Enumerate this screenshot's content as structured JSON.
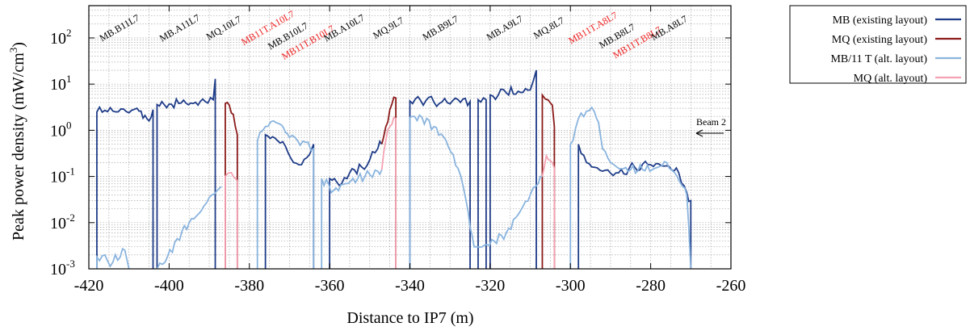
{
  "chart_data": {
    "type": "line",
    "ylabel": "Peak power density (mW/cm",
    "ylabel_sup": "3",
    "ylabel_end": ")",
    "xlabel": "Distance to IP7 (m)",
    "xlim": [
      -420,
      -260
    ],
    "ylim": [
      0.001,
      500
    ],
    "yscale": "log",
    "grid": true,
    "legend_position": "right, outside plot",
    "x_ticks": [
      {
        "v": -420,
        "label": "-420"
      },
      {
        "v": -400,
        "label": "-400"
      },
      {
        "v": -380,
        "label": "-380"
      },
      {
        "v": -360,
        "label": "-360"
      },
      {
        "v": -340,
        "label": "-340"
      },
      {
        "v": -320,
        "label": "-320"
      },
      {
        "v": -300,
        "label": "-300"
      },
      {
        "v": -280,
        "label": "-280"
      },
      {
        "v": -260,
        "label": "-260"
      }
    ],
    "y_ticks": [
      {
        "v": 0.001,
        "base": "10",
        "exp": "-3"
      },
      {
        "v": 0.01,
        "base": "10",
        "exp": "-2"
      },
      {
        "v": 0.1,
        "base": "10",
        "exp": "-1"
      },
      {
        "v": 1,
        "base": "10",
        "exp": "0"
      },
      {
        "v": 10,
        "base": "10",
        "exp": "1"
      },
      {
        "v": 100,
        "base": "10",
        "exp": "2"
      }
    ],
    "magnet_labels": [
      {
        "text": "MB.B11L7",
        "x": -412,
        "y": 38,
        "color": "#000000"
      },
      {
        "text": "MB.A11L7",
        "x": -397,
        "y": 38,
        "color": "#000000"
      },
      {
        "text": "MQ.10L7",
        "x": -386,
        "y": 38,
        "color": "#000000"
      },
      {
        "text": "MB11T.A10L7",
        "x": -375,
        "y": 38,
        "color": "#ee2222"
      },
      {
        "text": "MB.B10L7",
        "x": -370,
        "y": 48,
        "color": "#000000"
      },
      {
        "text": "MB11T.B10L7",
        "x": -365,
        "y": 56,
        "color": "#ee2222"
      },
      {
        "text": "MB.A10L7",
        "x": -356,
        "y": 38,
        "color": "#000000"
      },
      {
        "text": "MQ.9L7",
        "x": -345,
        "y": 38,
        "color": "#000000"
      },
      {
        "text": "MB.B9L7",
        "x": -332,
        "y": 38,
        "color": "#000000"
      },
      {
        "text": "MB.A9L7",
        "x": -316,
        "y": 38,
        "color": "#000000"
      },
      {
        "text": "MQ.8L7",
        "x": -305,
        "y": 38,
        "color": "#000000"
      },
      {
        "text": "MB11T.A8L7",
        "x": -294,
        "y": 38,
        "color": "#ee2222"
      },
      {
        "text": "MB.B8L7",
        "x": -288,
        "y": 48,
        "color": "#000000"
      },
      {
        "text": "MB11T.B8L7",
        "x": -283,
        "y": 56,
        "color": "#ee2222"
      },
      {
        "text": "MB.A8L7",
        "x": -275,
        "y": 38,
        "color": "#000000"
      }
    ],
    "annotation": {
      "text": "Beam 2"
    },
    "series": [
      {
        "name": "MB (existing layout)",
        "color": "#1f3c88",
        "segments": [
          [
            [
              -418,
              0.001
            ],
            [
              -418,
              2.5
            ],
            [
              -416,
              2.7
            ],
            [
              -414,
              2.6
            ],
            [
              -412,
              2.9
            ],
            [
              -410,
              2.4
            ],
            [
              -408,
              3.0
            ],
            [
              -407,
              2.6
            ],
            [
              -406,
              2.1
            ],
            [
              -405,
              1.6
            ],
            [
              -404.5,
              1.9
            ],
            [
              -404,
              2.8
            ],
            [
              -404,
              0.001
            ]
          ],
          [
            [
              -403,
              0.001
            ],
            [
              -403,
              3.6
            ],
            [
              -400,
              3.7
            ],
            [
              -397,
              3.9
            ],
            [
              -394,
              3.8
            ],
            [
              -391,
              4.2
            ],
            [
              -389,
              4.6
            ],
            [
              -388.5,
              13
            ],
            [
              -388.5,
              0.001
            ]
          ],
          [
            [
              -376,
              0.001
            ],
            [
              -376,
              0.8
            ],
            [
              -373,
              0.6
            ],
            [
              -371,
              0.45
            ],
            [
              -369,
              0.2
            ],
            [
              -367,
              0.18
            ],
            [
              -365,
              0.3
            ],
            [
              -364,
              0.5
            ],
            [
              -364,
              0.001
            ]
          ],
          [
            [
              -360,
              0.001
            ],
            [
              -360,
              0.09
            ],
            [
              -357,
              0.07
            ],
            [
              -355,
              0.12
            ],
            [
              -352,
              0.16
            ],
            [
              -350,
              0.23
            ],
            [
              -348,
              0.4
            ],
            [
              -347,
              0.5
            ]
          ],
          [
            [
              -340,
              0.001
            ],
            [
              -340,
              4.3
            ],
            [
              -336,
              4.4
            ],
            [
              -332,
              4.1
            ],
            [
              -328,
              4.6
            ],
            [
              -325,
              4.2
            ],
            [
              -325,
              0.001
            ]
          ],
          [
            [
              -323,
              0.001
            ],
            [
              -323,
              4.6
            ],
            [
              -321,
              4.6
            ],
            [
              -321,
              0.001
            ]
          ],
          [
            [
              -320,
              0.001
            ],
            [
              -320,
              5.8
            ],
            [
              -316,
              6.5
            ],
            [
              -313,
              7.0
            ],
            [
              -310,
              7.5
            ],
            [
              -308.5,
              20
            ],
            [
              -308.5,
              0.001
            ]
          ],
          [
            [
              -298,
              0.001
            ],
            [
              -298,
              0.5
            ],
            [
              -296,
              0.2
            ],
            [
              -292,
              0.13
            ],
            [
              -288,
              0.12
            ],
            [
              -284,
              0.16
            ],
            [
              -280,
              0.18
            ],
            [
              -276,
              0.17
            ],
            [
              -273,
              0.12
            ],
            [
              -271,
              0.045
            ],
            [
              -270,
              0.03
            ],
            [
              -270,
              0.001
            ]
          ]
        ]
      },
      {
        "name": "MQ (existing layout)",
        "color": "#8b1a1a",
        "segments": [
          [
            [
              -386,
              0.001
            ],
            [
              -386,
              3.8
            ],
            [
              -385,
              3.5
            ],
            [
              -384,
              2.2
            ],
            [
              -383,
              0.8
            ],
            [
              -383,
              0.001
            ]
          ],
          [
            [
              -347,
              0.5
            ],
            [
              -346,
              1.2
            ],
            [
              -345,
              2.8
            ],
            [
              -344,
              5.2
            ],
            [
              -343.5,
              5.0
            ],
            [
              -343.5,
              0.001
            ]
          ],
          [
            [
              -307,
              0.001
            ],
            [
              -307,
              5.8
            ],
            [
              -305.5,
              4.5
            ],
            [
              -304.5,
              3.5
            ],
            [
              -304,
              1.2
            ],
            [
              -304,
              0.001
            ]
          ]
        ]
      },
      {
        "name": "MB/11 T (alt. layout)",
        "color": "#8ab4de",
        "segments": [
          [
            [
              -418,
              0.001
            ],
            [
              -418,
              0.0018
            ],
            [
              -414,
              0.0014
            ],
            [
              -411,
              0.0025
            ],
            [
              -410,
              0.001
            ]
          ],
          [
            [
              -403,
              0.001
            ],
            [
              -401,
              0.0014
            ],
            [
              -398,
              0.0045
            ],
            [
              -395,
              0.01
            ],
            [
              -392,
              0.018
            ],
            [
              -390,
              0.035
            ],
            [
              -388,
              0.05
            ],
            [
              -387,
              0.06
            ]
          ],
          [
            [
              -378,
              0.001
            ],
            [
              -378,
              0.6
            ],
            [
              -376,
              1.2
            ],
            [
              -374,
              1.6
            ],
            [
              -372,
              1.3
            ],
            [
              -371,
              0.9
            ],
            [
              -370,
              0.7
            ],
            [
              -368,
              0.6
            ],
            [
              -366,
              0.55
            ],
            [
              -364,
              0.4
            ],
            [
              -364,
              0.001
            ]
          ],
          [
            [
              -362,
              0.001
            ],
            [
              -362,
              0.09
            ],
            [
              -359,
              0.05
            ],
            [
              -356,
              0.07
            ],
            [
              -353,
              0.09
            ],
            [
              -350,
              0.11
            ],
            [
              -348,
              0.13
            ],
            [
              -347,
              0.14
            ]
          ],
          [
            [
              -340,
              0.001
            ],
            [
              -340,
              1.9
            ],
            [
              -337,
              1.9
            ],
            [
              -334,
              1.2
            ],
            [
              -331,
              0.6
            ],
            [
              -328,
              0.15
            ],
            [
              -326,
              0.03
            ],
            [
              -325,
              0.008
            ],
            [
              -324,
              0.003
            ],
            [
              -322,
              0.003
            ],
            [
              -319,
              0.004
            ],
            [
              -316,
              0.006
            ],
            [
              -313,
              0.015
            ],
            [
              -310,
              0.04
            ],
            [
              -308,
              0.07
            ],
            [
              -307,
              0.1
            ]
          ],
          [
            [
              -300,
              0.001
            ],
            [
              -300,
              0.5
            ],
            [
              -298,
              1.8
            ],
            [
              -296,
              2.6
            ],
            [
              -294,
              2.5
            ],
            [
              -293,
              1.5
            ],
            [
              -292,
              0.4
            ],
            [
              -290,
              0.2
            ],
            [
              -288,
              0.15
            ],
            [
              -285,
              0.14
            ],
            [
              -282,
              0.14
            ],
            [
              -279,
              0.15
            ],
            [
              -276,
              0.2
            ],
            [
              -274,
              0.12
            ],
            [
              -272,
              0.06
            ],
            [
              -271,
              0.04
            ],
            [
              -270,
              0.001
            ]
          ]
        ]
      },
      {
        "name": "MQ (alt. layout)",
        "color": "#f4a3b2",
        "segments": [
          [
            [
              -386,
              0.001
            ],
            [
              -386,
              0.1
            ],
            [
              -385,
              0.12
            ],
            [
              -384,
              0.1
            ],
            [
              -383,
              0.08
            ],
            [
              -383,
              0.001
            ]
          ],
          [
            [
              -347,
              0.14
            ],
            [
              -346,
              0.6
            ],
            [
              -345,
              1.2
            ],
            [
              -344,
              1.9
            ],
            [
              -343.5,
              1.8
            ],
            [
              -343.5,
              0.001
            ]
          ],
          [
            [
              -307,
              0.1
            ],
            [
              -306,
              0.28
            ],
            [
              -305,
              0.22
            ],
            [
              -304.5,
              0.2
            ],
            [
              -304,
              0.15
            ],
            [
              -304,
              0.001
            ]
          ]
        ]
      }
    ]
  }
}
